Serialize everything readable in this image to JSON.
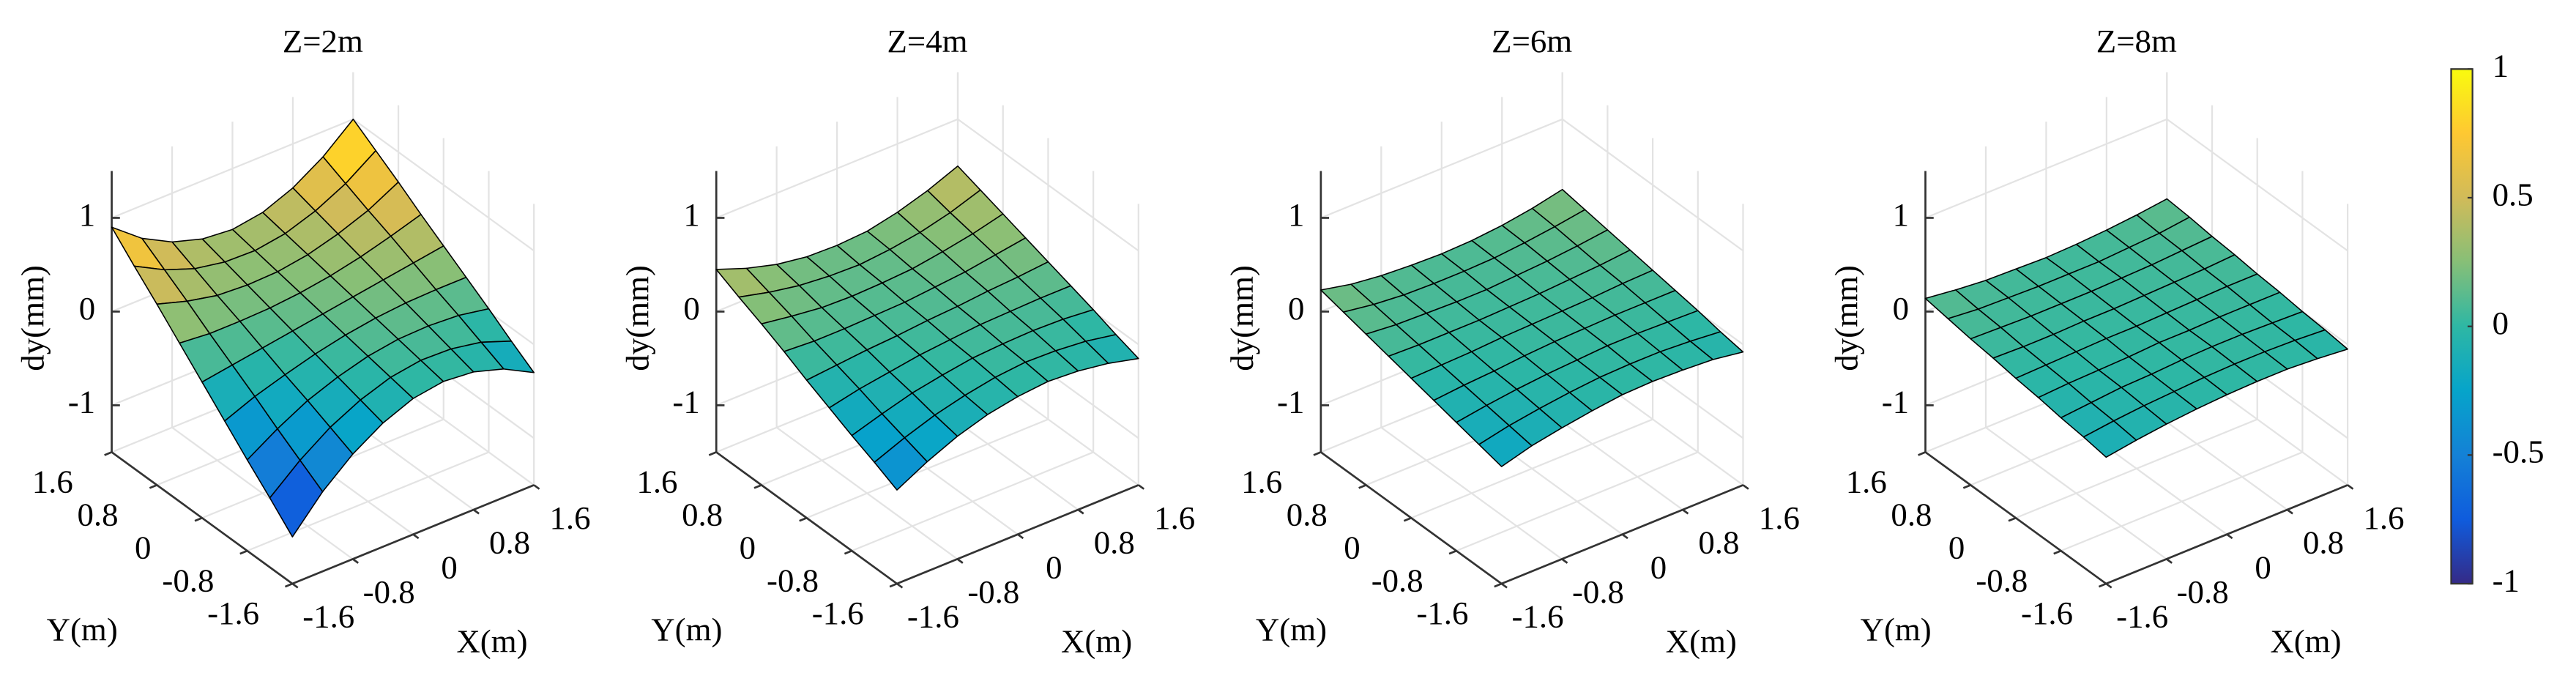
{
  "chart_data": [
    {
      "type": "surface",
      "title": "Z=2m",
      "xlabel": "X(m)",
      "ylabel": "Y(m)",
      "zlabel": "dy(mm)",
      "x": [
        -1.6,
        -1.2,
        -0.8,
        -0.4,
        0,
        0.4,
        0.8,
        1.2,
        1.6
      ],
      "y": [
        -1.6,
        -1.2,
        -0.8,
        -0.4,
        0,
        0.4,
        0.8,
        1.2,
        1.6
      ],
      "z": [
        [
          -1.0,
          -0.65,
          -0.38,
          -0.18,
          -0.05,
          0,
          -0.03,
          -0.13,
          -0.3
        ],
        [
          -0.76,
          -0.49,
          -0.27,
          -0.11,
          0,
          0.05,
          0.04,
          -0.02,
          -0.14
        ],
        [
          -0.53,
          -0.33,
          -0.16,
          -0.04,
          0.05,
          0.1,
          0.11,
          0.09,
          0.03
        ],
        [
          -0.29,
          -0.16,
          -0.06,
          0.03,
          0.1,
          0.15,
          0.18,
          0.19,
          0.19
        ],
        [
          -0.05,
          0,
          0.05,
          0.1,
          0.15,
          0.2,
          0.25,
          0.3,
          0.35
        ],
        [
          0.19,
          0.16,
          0.16,
          0.17,
          0.2,
          0.25,
          0.32,
          0.41,
          0.51
        ],
        [
          0.43,
          0.33,
          0.26,
          0.24,
          0.25,
          0.3,
          0.39,
          0.51,
          0.68
        ],
        [
          0.66,
          0.49,
          0.37,
          0.31,
          0.3,
          0.35,
          0.46,
          0.62,
          0.84
        ],
        [
          0.9,
          0.65,
          0.48,
          0.38,
          0.35,
          0.4,
          0.53,
          0.73,
          1.0
        ]
      ],
      "xlim": [
        -1.6,
        1.6
      ],
      "ylim": [
        -1.6,
        1.6
      ],
      "zlim": [
        -1.5,
        1.5
      ],
      "xticks": [
        -1.6,
        -0.8,
        0,
        0.8,
        1.6
      ],
      "yticks": [
        -1.6,
        -0.8,
        0,
        0.8,
        1.6
      ],
      "zticks": [
        -1,
        0,
        1
      ],
      "grid": true
    },
    {
      "type": "surface",
      "title": "Z=4m",
      "xlabel": "X(m)",
      "ylabel": "Y(m)",
      "zlabel": "dy(mm)",
      "x": [
        -1.6,
        -1.2,
        -0.8,
        -0.4,
        0,
        0.4,
        0.8,
        1.2,
        1.6
      ],
      "y": [
        -1.6,
        -1.2,
        -0.8,
        -0.4,
        0,
        0.4,
        0.8,
        1.2,
        1.6
      ],
      "z": [
        [
          -0.5,
          -0.33,
          -0.19,
          -0.09,
          -0.03,
          0,
          -0.02,
          -0.07,
          -0.15
        ],
        [
          -0.38,
          -0.25,
          -0.14,
          -0.06,
          0,
          0.03,
          0.02,
          -0.01,
          -0.07
        ],
        [
          -0.27,
          -0.17,
          -0.08,
          -0.02,
          0.03,
          0.05,
          0.06,
          0.05,
          0.02
        ],
        [
          -0.15,
          -0.08,
          -0.03,
          0.02,
          0.05,
          0.08,
          0.09,
          0.1,
          0.1
        ],
        [
          -0.03,
          0,
          0.03,
          0.05,
          0.08,
          0.1,
          0.13,
          0.15,
          0.18
        ],
        [
          0.1,
          0.08,
          0.08,
          0.09,
          0.1,
          0.13,
          0.16,
          0.21,
          0.26
        ],
        [
          0.22,
          0.17,
          0.13,
          0.12,
          0.13,
          0.15,
          0.2,
          0.26,
          0.34
        ],
        [
          0.33,
          0.25,
          0.19,
          0.16,
          0.15,
          0.18,
          0.23,
          0.31,
          0.42
        ],
        [
          0.45,
          0.33,
          0.24,
          0.19,
          0.18,
          0.2,
          0.27,
          0.37,
          0.5
        ]
      ],
      "xlim": [
        -1.6,
        1.6
      ],
      "ylim": [
        -1.6,
        1.6
      ],
      "zlim": [
        -1.5,
        1.5
      ],
      "xticks": [
        -1.6,
        -0.8,
        0,
        0.8,
        1.6
      ],
      "yticks": [
        -1.6,
        -0.8,
        0,
        0.8,
        1.6
      ],
      "zticks": [
        -1,
        0,
        1
      ],
      "grid": true
    },
    {
      "type": "surface",
      "title": "Z=6m",
      "xlabel": "X(m)",
      "ylabel": "Y(m)",
      "zlabel": "dy(mm)",
      "x": [
        -1.6,
        -1.2,
        -0.8,
        -0.4,
        0,
        0.4,
        0.8,
        1.2,
        1.6
      ],
      "y": [
        -1.6,
        -1.2,
        -0.8,
        -0.4,
        0,
        0.4,
        0.8,
        1.2,
        1.6
      ],
      "z": [
        [
          -0.25,
          -0.16,
          -0.1,
          -0.05,
          -0.01,
          0,
          -0.01,
          -0.03,
          -0.08
        ],
        [
          -0.19,
          -0.12,
          -0.07,
          -0.03,
          0,
          0.01,
          0.01,
          -0.01,
          -0.04
        ],
        [
          -0.13,
          -0.08,
          -0.04,
          -0.01,
          0.01,
          0.03,
          0.03,
          0.02,
          0.01
        ],
        [
          -0.07,
          -0.04,
          -0.02,
          0.01,
          0.03,
          0.04,
          0.05,
          0.05,
          0.05
        ],
        [
          -0.01,
          0,
          0.01,
          0.03,
          0.04,
          0.05,
          0.06,
          0.08,
          0.09
        ],
        [
          0.05,
          0.04,
          0.04,
          0.04,
          0.05,
          0.06,
          0.08,
          0.1,
          0.13
        ],
        [
          0.11,
          0.08,
          0.07,
          0.06,
          0.06,
          0.08,
          0.1,
          0.13,
          0.17
        ],
        [
          0.17,
          0.12,
          0.09,
          0.08,
          0.08,
          0.09,
          0.12,
          0.16,
          0.21
        ],
        [
          0.23,
          0.16,
          0.12,
          0.1,
          0.09,
          0.1,
          0.13,
          0.18,
          0.25
        ]
      ],
      "xlim": [
        -1.6,
        1.6
      ],
      "ylim": [
        -1.6,
        1.6
      ],
      "zlim": [
        -1.5,
        1.5
      ],
      "xticks": [
        -1.6,
        -0.8,
        0,
        0.8,
        1.6
      ],
      "yticks": [
        -1.6,
        -0.8,
        0,
        0.8,
        1.6
      ],
      "zticks": [
        -1,
        0,
        1
      ],
      "grid": true
    },
    {
      "type": "surface",
      "title": "Z=8m",
      "xlabel": "X(m)",
      "ylabel": "Y(m)",
      "zlabel": "dy(mm)",
      "x": [
        -1.6,
        -1.2,
        -0.8,
        -0.4,
        0,
        0.4,
        0.8,
        1.2,
        1.6
      ],
      "y": [
        -1.6,
        -1.2,
        -0.8,
        -0.4,
        0,
        0.4,
        0.8,
        1.2,
        1.6
      ],
      "z": [
        [
          -0.15,
          -0.1,
          -0.06,
          -0.03,
          -0.01,
          0,
          0,
          -0.02,
          -0.05
        ],
        [
          -0.11,
          -0.07,
          -0.04,
          -0.02,
          0,
          0.01,
          0.01,
          0,
          -0.02
        ],
        [
          -0.08,
          -0.05,
          -0.02,
          -0.01,
          0.01,
          0.02,
          0.02,
          0.01,
          0
        ],
        [
          -0.04,
          -0.02,
          -0.01,
          0,
          0.02,
          0.02,
          0.03,
          0.03,
          0.03
        ],
        [
          -0.01,
          0,
          0.01,
          0.02,
          0.02,
          0.03,
          0.04,
          0.05,
          0.05
        ],
        [
          0.03,
          0.02,
          0.02,
          0.03,
          0.03,
          0.04,
          0.05,
          0.06,
          0.08
        ],
        [
          0.06,
          0.05,
          0.04,
          0.04,
          0.04,
          0.05,
          0.06,
          0.08,
          0.1
        ],
        [
          0.1,
          0.07,
          0.06,
          0.05,
          0.05,
          0.05,
          0.07,
          0.09,
          0.13
        ],
        [
          0.14,
          0.1,
          0.07,
          0.06,
          0.05,
          0.06,
          0.08,
          0.11,
          0.15
        ]
      ],
      "xlim": [
        -1.6,
        1.6
      ],
      "ylim": [
        -1.6,
        1.6
      ],
      "zlim": [
        -1.5,
        1.5
      ],
      "xticks": [
        -1.6,
        -0.8,
        0,
        0.8,
        1.6
      ],
      "yticks": [
        -1.6,
        -0.8,
        0,
        0.8,
        1.6
      ],
      "zticks": [
        -1,
        0,
        1
      ],
      "grid": true
    }
  ],
  "colorbar": {
    "limits": [
      -1,
      1
    ],
    "ticks": [
      -1,
      -0.5,
      0,
      0.5,
      1
    ],
    "colormap": "parula"
  }
}
